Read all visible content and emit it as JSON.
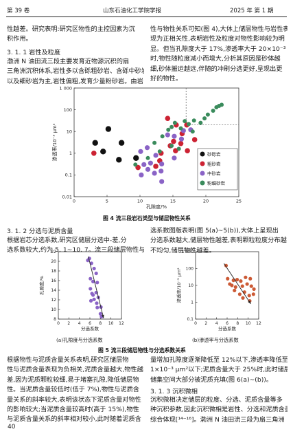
{
  "header": {
    "volume": "第 39 卷",
    "journal": "山东石油化工学院学报",
    "issue": "2025 年   第 1 期"
  },
  "top_left": [
    "性越差。研究表明:研究区物性的主控因素为沉",
    "积作用。"
  ],
  "top_right": [
    "性与物性关系可知(图 4),大体上储层物性与岩性表",
    "现为正相关性,表明岩性及粒度对物性影响较为明",
    "显。但当孔隙度大于 17%,渗透率大于 20×10⁻³ μm²",
    "时,物性随粒度减小而增大,分析其原因是砂体越",
    "细,砂体搬运越远,伴随的冲刷分选更好,呈现出更",
    "好的物性。"
  ],
  "sec_311": "3. 1. 1   岩性及粒度",
  "para_311": [
    "    渤洲 N 油田流三段主要发育近物源沉积的扇",
    "三角洲沉积体系,岩性多以含砾粗砂岩、含砾中砂岩",
    "以及细砂岩为主,岩性偏粗,发育少量粉砂岩。由岩"
  ],
  "fig4": {
    "caption": "图 4   流三段岩石类型与储层物性关系",
    "chart_data": {
      "type": "scatter",
      "xlabel": "孔隙度/%",
      "ylabel": "渗透率/10⁻³ μm²",
      "xlim": [
        0,
        25
      ],
      "ylim": [
        0.01,
        1000
      ],
      "yscale": "log",
      "xticks": [
        "0",
        "5",
        "10",
        "15",
        "20",
        "25"
      ],
      "yticks": [
        "0.01",
        "0.1",
        "1",
        "10",
        "100",
        "1 000"
      ],
      "legend_position": "lower-right",
      "threshold_lines": {
        "x": 17,
        "y": 20
      },
      "series": [
        {
          "name": "砂砾岩",
          "color": "#111111",
          "points": [
            [
              5.2,
              13
            ],
            [
              3.2,
              3
            ],
            [
              7.2,
              3
            ],
            [
              4.4,
              1.2
            ],
            [
              6.8,
              0.5
            ],
            [
              9.4,
              0.6
            ]
          ]
        },
        {
          "name": "粗砂岩",
          "color": "#cc2233",
          "points": [
            [
              3.0,
              1.0
            ],
            [
              12.4,
              0.25
            ],
            [
              13.2,
              1.0
            ],
            [
              14.6,
              2.2
            ],
            [
              15.1,
              3.5
            ],
            [
              16.2,
              2.8
            ],
            [
              15.4,
              1.3
            ],
            [
              17.2,
              1.3
            ],
            [
              18.3,
              4.2
            ],
            [
              16.4,
              8
            ],
            [
              15.5,
              20
            ],
            [
              14.2,
              40
            ],
            [
              17.1,
              20
            ],
            [
              13.0,
              0.45
            ],
            [
              9.7,
              0.22
            ]
          ]
        },
        {
          "name": "中砂岩",
          "color": "#8a63c6",
          "points": [
            [
              10.2,
              0.1
            ],
            [
              11.2,
              0.18
            ],
            [
              12.2,
              0.12
            ],
            [
              11.6,
              0.35
            ],
            [
              13.3,
              0.32
            ],
            [
              10.1,
              1.2
            ],
            [
              14.2,
              7
            ],
            [
              15.2,
              6
            ],
            [
              16.6,
              11
            ],
            [
              17.7,
              12
            ],
            [
              13.3,
              0.05
            ],
            [
              12.4,
              0.8
            ],
            [
              11.1,
              1.8
            ],
            [
              15.2,
              0.6
            ],
            [
              13.2,
              0.15
            ],
            [
              16.3,
              4.5
            ],
            [
              10.6,
              0.3
            ]
          ]
        },
        {
          "name": "粉细砂岩",
          "color": "#3a8b5c",
          "points": [
            [
              9.3,
              0.3
            ],
            [
              11.2,
              0.6
            ],
            [
              13.0,
              1.2
            ],
            [
              12.2,
              3
            ],
            [
              13.4,
              6
            ],
            [
              14.3,
              12
            ],
            [
              14.8,
              16
            ],
            [
              15.3,
              25
            ],
            [
              16.2,
              14
            ],
            [
              17.4,
              22
            ],
            [
              18.2,
              32
            ],
            [
              19.2,
              25
            ],
            [
              19.8,
              40
            ],
            [
              20.3,
              60
            ],
            [
              21.1,
              90
            ],
            [
              21.6,
              130
            ],
            [
              22.0,
              150
            ],
            [
              22.4,
              170
            ],
            [
              18.0,
              10
            ],
            [
              16.8,
              30
            ],
            [
              14.8,
              2.2
            ],
            [
              15.9,
              1.6
            ]
          ]
        }
      ]
    }
  },
  "sec_312": "3. 1. 2   分选与泥质含量",
  "para_312_left": [
    "    根据岩芯分选系数,研究区储层分选中-差,分",
    "选系数较大,约为 5. 1~10. 7。流三段储层物性与分"
  ],
  "para_312_right": [
    "选系数图版表明(图 5(a)~5(b)),大体上呈现出",
    "分选系数越大,储层物性越差,表明颗粒粒度分布越",
    "不均匀,储层物性越差。"
  ],
  "fig5": {
    "caption": "图 5   流三段储层物性与分选系数关系",
    "sub_a_caption": "(a)孔隙度与分选系数",
    "sub_b_caption": "(b)渗透率与分选系数",
    "chart_data": [
      {
        "type": "scatter",
        "xlabel": "分选系数",
        "ylabel": "孔隙度/%",
        "xlim": [
          0,
          12
        ],
        "ylim": [
          8,
          22
        ],
        "xticks": [
          "0",
          "2",
          "4",
          "6",
          "8",
          "10",
          "12"
        ],
        "yticks": [
          "8",
          "10",
          "12",
          "14",
          "16",
          "18",
          "20",
          "22"
        ],
        "color": "#8a63c6",
        "points": [
          [
            5.6,
            20.2
          ],
          [
            5.9,
            20.6
          ],
          [
            6.3,
            19.6
          ],
          [
            6.8,
            18.5
          ],
          [
            7.2,
            17.5
          ],
          [
            6.1,
            16.4
          ],
          [
            6.6,
            15.8
          ],
          [
            7.4,
            15.6
          ],
          [
            6.1,
            14.3
          ],
          [
            6.4,
            13.3
          ],
          [
            7.2,
            13.5
          ],
          [
            7.6,
            12.5
          ],
          [
            6.8,
            12.1
          ],
          [
            6.2,
            11.8
          ],
          [
            7.3,
            11.3
          ],
          [
            8.1,
            10.5
          ],
          [
            7.4,
            10.4
          ],
          [
            8.0,
            9.1
          ],
          [
            8.2,
            8.5
          ],
          [
            6.6,
            13.0
          ]
        ],
        "trend": [
          [
            5.7,
            21.0
          ],
          [
            8.6,
            8.2
          ]
        ]
      },
      {
        "type": "scatter",
        "xlabel": "分选系数",
        "ylabel": "渗透率/10⁻³ μm²",
        "xlim": [
          0,
          12
        ],
        "ylim": [
          0.1,
          1000
        ],
        "yscale": "log",
        "xticks": [
          "0",
          "2",
          "4",
          "6",
          "8",
          "10",
          "12"
        ],
        "yticks": [
          "0.1",
          "1",
          "10",
          "100",
          "1 000"
        ],
        "color": "#cc5a35",
        "points": [
          [
            5.8,
            150
          ],
          [
            6.1,
            25
          ],
          [
            6.5,
            12
          ],
          [
            7.2,
            20
          ],
          [
            7.9,
            22
          ],
          [
            8.6,
            18
          ],
          [
            9.5,
            30
          ],
          [
            10.4,
            25
          ],
          [
            6.9,
            10
          ],
          [
            7.6,
            8
          ],
          [
            8.9,
            9
          ],
          [
            9.8,
            12
          ],
          [
            10.6,
            9
          ],
          [
            7.4,
            5
          ],
          [
            8.4,
            3
          ],
          [
            9.3,
            4
          ],
          [
            10.2,
            2.5
          ],
          [
            11.1,
            6
          ],
          [
            9.0,
            1.8
          ],
          [
            10.3,
            1.2
          ],
          [
            11.0,
            3
          ]
        ],
        "trend": [
          [
            5.4,
            200
          ],
          [
            10.5,
            0.8
          ]
        ]
      }
    ]
  },
  "para_bottom_left": [
    "    根据物性与泥质含量关系表明,研究区储层物",
    "性与泥质含量表现为负相关,泥质含量越大,物性越",
    "差,因为泥质颗粒较细,易于堵塞孔隙,降低储层物",
    "性。当泥质含量较低时(低于 7%),物性与泥质含",
    "量关系的斜率较大,表明该状态下泥质含量对物性",
    "的影响较大;当泥质含量较高时(高于 15%),物性",
    "与泥质含量关系的斜率相对较小,此时随着泥质含"
  ],
  "para_bottom_right": [
    "量增加孔隙度逐渐降低至 12%以下,渗透率降低至",
    "1×10⁻³ μm²以下;泥质含量大于 25%时,此时储层的",
    "储集空间大部分被泥质充填(图 6(a)~(b))。"
  ],
  "sec_313": "3. 1. 3   沉积微相",
  "para_313": [
    "    沉积微相决定储层的粒度、分选、泥质含量等多",
    "种沉积参数,因此沉积微相是岩性、分选和泥质含量的",
    "综合体现[¹⁴⁻¹⁶]。渤洲 N 油田流三段为扇三角洲"
  ],
  "page_number": "40"
}
